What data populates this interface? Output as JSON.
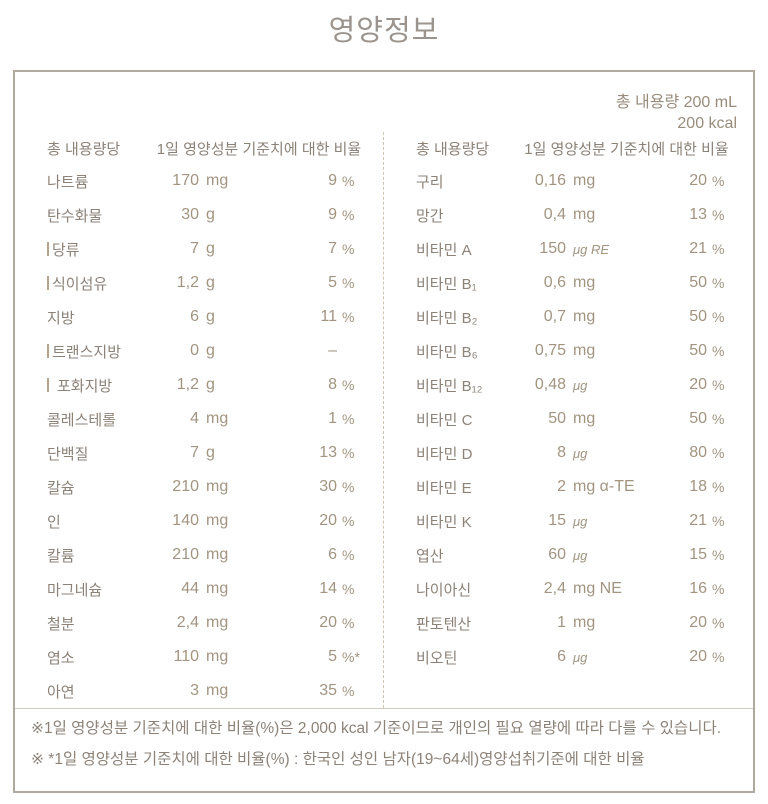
{
  "page": {
    "title": "영양정보"
  },
  "panel": {
    "total_amount_line1": "총 내용량 200 mL",
    "total_amount_line2": "200 kcal",
    "column_header": {
      "per_amount": "총 내용량당",
      "daily_value": "1일 영양성분 기준치에 대한 비율"
    },
    "left_rows": [
      {
        "label": "나트륨",
        "sub": false,
        "value": "170",
        "unit": "mg",
        "pct": "9",
        "pct_suffix": "%"
      },
      {
        "label": "탄수화물",
        "sub": false,
        "value": "30",
        "unit": "g",
        "pct": "9",
        "pct_suffix": "%"
      },
      {
        "label": "당류",
        "sub": true,
        "value": "7",
        "unit": "g",
        "pct": "7",
        "pct_suffix": "%"
      },
      {
        "label": "식이섬유",
        "sub": true,
        "value": "1,2",
        "unit": "g",
        "pct": "5",
        "pct_suffix": "%"
      },
      {
        "label": "지방",
        "sub": false,
        "value": "6",
        "unit": "g",
        "pct": "11",
        "pct_suffix": "%"
      },
      {
        "label": "트랜스지방",
        "sub": true,
        "value": "0",
        "unit": "g",
        "pct": "–",
        "pct_suffix": ""
      },
      {
        "label": "포화지방",
        "sub": true,
        "sub_gap": true,
        "value": "1,2",
        "unit": "g",
        "pct": "8",
        "pct_suffix": "%"
      },
      {
        "label": "콜레스테롤",
        "sub": false,
        "value": "4",
        "unit": "mg",
        "pct": "1",
        "pct_suffix": "%"
      },
      {
        "label": "단백질",
        "sub": false,
        "value": "7",
        "unit": "g",
        "pct": "13",
        "pct_suffix": "%"
      },
      {
        "label": "칼슘",
        "sub": false,
        "value": "210",
        "unit": "mg",
        "pct": "30",
        "pct_suffix": "%"
      },
      {
        "label": "인",
        "sub": false,
        "value": "140",
        "unit": "mg",
        "pct": "20",
        "pct_suffix": "%"
      },
      {
        "label": "칼륨",
        "sub": false,
        "value": "210",
        "unit": "mg",
        "pct": "6",
        "pct_suffix": "%"
      },
      {
        "label": "마그네슘",
        "sub": false,
        "value": "44",
        "unit": "mg",
        "pct": "14",
        "pct_suffix": "%"
      },
      {
        "label": "철분",
        "sub": false,
        "value": "2,4",
        "unit": "mg",
        "pct": "20",
        "pct_suffix": "%"
      },
      {
        "label": "염소",
        "sub": false,
        "value": "110",
        "unit": "mg",
        "pct": "5",
        "pct_suffix": "%*"
      },
      {
        "label": "아연",
        "sub": false,
        "value": "3",
        "unit": "mg",
        "pct": "35",
        "pct_suffix": "%"
      }
    ],
    "right_rows": [
      {
        "label": "구리",
        "sub": false,
        "value": "0,16",
        "unit": "mg",
        "pct": "20",
        "pct_suffix": "%"
      },
      {
        "label": "망간",
        "sub": false,
        "value": "0,4",
        "unit": "mg",
        "pct": "13",
        "pct_suffix": "%"
      },
      {
        "label": "비타민 A",
        "sub": false,
        "value": "150",
        "unit": "μg RE",
        "pct": "21",
        "pct_suffix": "%"
      },
      {
        "label": "비타민 B₁",
        "sub": false,
        "value": "0,6",
        "unit": "mg",
        "pct": "50",
        "pct_suffix": "%"
      },
      {
        "label": "비타민 B₂",
        "sub": false,
        "value": "0,7",
        "unit": "mg",
        "pct": "50",
        "pct_suffix": "%"
      },
      {
        "label": "비타민 B₆",
        "sub": false,
        "value": "0,75",
        "unit": "mg",
        "pct": "50",
        "pct_suffix": "%"
      },
      {
        "label": "비타민 B₁₂",
        "sub": false,
        "value": "0,48",
        "unit": "μg",
        "pct": "20",
        "pct_suffix": "%"
      },
      {
        "label": "비타민 C",
        "sub": false,
        "value": "50",
        "unit": "mg",
        "pct": "50",
        "pct_suffix": "%"
      },
      {
        "label": "비타민 D",
        "sub": false,
        "value": "8",
        "unit": "μg",
        "pct": "80",
        "pct_suffix": "%"
      },
      {
        "label": "비타민 E",
        "sub": false,
        "value": "2",
        "unit": "mg α-TE",
        "pct": "18",
        "pct_suffix": "%"
      },
      {
        "label": "비타민 K",
        "sub": false,
        "value": "15",
        "unit": "μg",
        "pct": "21",
        "pct_suffix": "%"
      },
      {
        "label": "엽산",
        "sub": false,
        "value": "60",
        "unit": "μg",
        "pct": "15",
        "pct_suffix": "%"
      },
      {
        "label": "나이아신",
        "sub": false,
        "value": "2,4",
        "unit": "mg NE",
        "pct": "16",
        "pct_suffix": "%"
      },
      {
        "label": "판토텐산",
        "sub": false,
        "value": "1",
        "unit": "mg",
        "pct": "20",
        "pct_suffix": "%"
      },
      {
        "label": "비오틴",
        "sub": false,
        "value": "6",
        "unit": "μg",
        "pct": "20",
        "pct_suffix": "%"
      }
    ],
    "footnotes": [
      "※1일 영양성분 기준치에 대한 비율(%)은 2,000 kcal 기준이므로 개인의 필요 열량에 따라 다를 수 있습니다.",
      "※ *1일 영양성분 기준치에 대한 비율(%) : 한국인 성인 남자(19~64세)영양섭취기준에 대한 비율"
    ],
    "colors": {
      "title_text": "#9b948e",
      "label_text": "#8c8278",
      "value_text": "#a29480",
      "panel_border": "#b0a9a0",
      "divider_dashed": "#cdc4b4",
      "separator_line": "#d2cabc"
    }
  }
}
